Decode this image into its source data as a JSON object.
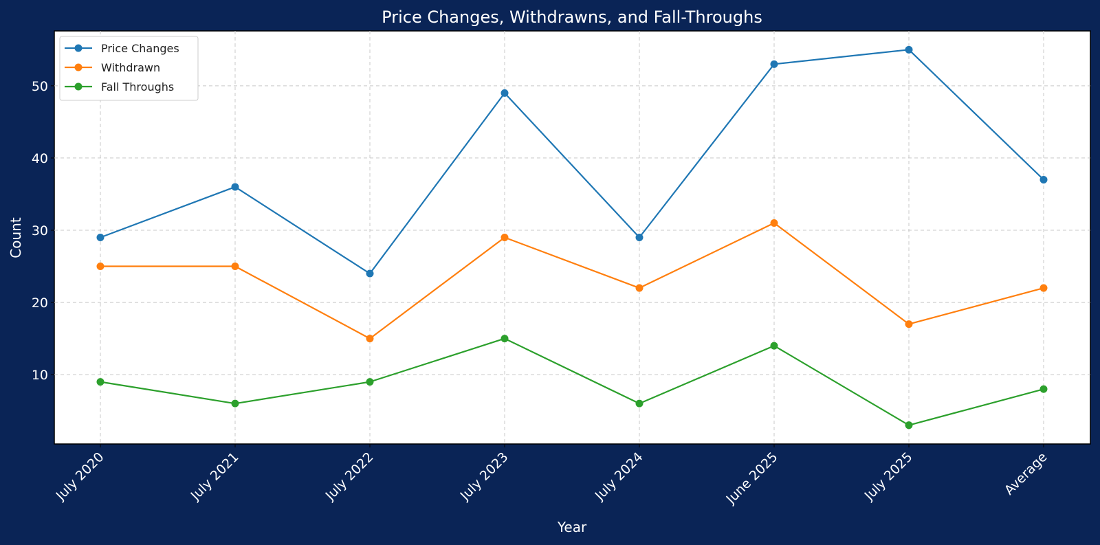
{
  "chart_data": {
    "type": "line",
    "title": "Price Changes, Withdrawns, and Fall-Throughs",
    "xlabel": "Year",
    "ylabel": "Count",
    "categories": [
      "July 2020",
      "July 2021",
      "July 2022",
      "July 2023",
      "July 2024",
      "June 2025",
      "July 2025",
      "Average"
    ],
    "ylim": [
      0.4,
      57.6
    ],
    "yticks": [
      10,
      20,
      30,
      40,
      50
    ],
    "grid": true,
    "legend_position": "top-left",
    "background_color": "#0a2456",
    "plot_background": "#ffffff",
    "series": [
      {
        "name": "Price Changes",
        "color": "#1f77b4",
        "values": [
          29,
          36,
          24,
          49,
          29,
          53,
          55,
          37
        ]
      },
      {
        "name": "Withdrawn",
        "color": "#ff7f0e",
        "values": [
          25,
          25,
          15,
          29,
          22,
          31,
          17,
          22
        ]
      },
      {
        "name": "Fall Throughs",
        "color": "#2ca02c",
        "values": [
          9,
          6,
          9,
          15,
          6,
          14,
          3,
          8
        ]
      }
    ]
  }
}
